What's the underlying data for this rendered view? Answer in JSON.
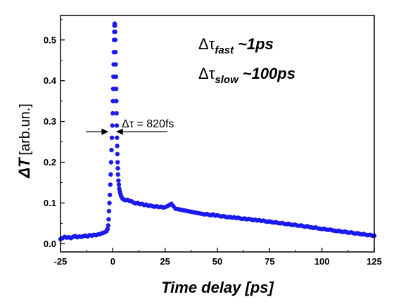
{
  "chart_data": {
    "type": "scatter",
    "xlabel": "Time delay [ps]",
    "ylabel_symbol": "ΔT",
    "ylabel_unit": "[arb.un.]",
    "xlim": [
      -25,
      125
    ],
    "ylim": [
      -0.02,
      0.56
    ],
    "xticks": [
      -25,
      0,
      25,
      50,
      75,
      100,
      125
    ],
    "yticks": [
      0.0,
      0.1,
      0.2,
      0.3,
      0.4,
      0.5
    ],
    "ytick_labels": [
      "0.0",
      "0.1",
      "0.2",
      "0.3",
      "0.4",
      "0.5"
    ],
    "grid": false,
    "marker_color": "#1a1aee",
    "annotations": {
      "fwhm": {
        "text": "Δτ = 820fs",
        "y": 0.275,
        "x_left": -2.0,
        "x_right": 1.5
      },
      "fast": {
        "delta": "Δτ",
        "sub": "fast",
        "value": "~1ps"
      },
      "slow": {
        "delta": "Δτ",
        "sub": "slow",
        "value": "~100ps"
      }
    },
    "points": [
      [
        -25,
        0.011
      ],
      [
        -24,
        0.014
      ],
      [
        -23,
        0.017
      ],
      [
        -22,
        0.015
      ],
      [
        -21,
        0.016
      ],
      [
        -20,
        0.014
      ],
      [
        -19,
        0.017
      ],
      [
        -18,
        0.019
      ],
      [
        -17,
        0.016
      ],
      [
        -16,
        0.018
      ],
      [
        -15,
        0.017
      ],
      [
        -14,
        0.019
      ],
      [
        -13,
        0.02
      ],
      [
        -12,
        0.018
      ],
      [
        -11,
        0.021
      ],
      [
        -10,
        0.02
      ],
      [
        -9,
        0.022
      ],
      [
        -8,
        0.021
      ],
      [
        -7,
        0.023
      ],
      [
        -6,
        0.024
      ],
      [
        -5,
        0.026
      ],
      [
        -4,
        0.028
      ],
      [
        -3,
        0.031
      ],
      [
        -2.5,
        0.036
      ],
      [
        -2.2,
        0.045
      ],
      [
        -2.0,
        0.06
      ],
      [
        -1.8,
        0.08
      ],
      [
        -1.6,
        0.1
      ],
      [
        -1.4,
        0.12
      ],
      [
        -1.2,
        0.145
      ],
      [
        -1.0,
        0.17
      ],
      [
        -0.8,
        0.2
      ],
      [
        -0.6,
        0.23
      ],
      [
        -0.4,
        0.26
      ],
      [
        -0.2,
        0.29
      ],
      [
        0.0,
        0.32
      ],
      [
        0.1,
        0.35
      ],
      [
        0.2,
        0.38
      ],
      [
        0.3,
        0.41
      ],
      [
        0.4,
        0.44
      ],
      [
        0.5,
        0.47
      ],
      [
        0.6,
        0.5
      ],
      [
        0.7,
        0.52
      ],
      [
        0.8,
        0.535
      ],
      [
        0.9,
        0.54
      ],
      [
        1.0,
        0.535
      ],
      [
        1.1,
        0.52
      ],
      [
        1.2,
        0.5
      ],
      [
        1.3,
        0.47
      ],
      [
        1.4,
        0.44
      ],
      [
        1.5,
        0.41
      ],
      [
        1.6,
        0.38
      ],
      [
        1.7,
        0.35
      ],
      [
        1.8,
        0.32
      ],
      [
        1.9,
        0.29
      ],
      [
        2.0,
        0.26
      ],
      [
        2.1,
        0.24
      ],
      [
        2.2,
        0.22
      ],
      [
        2.3,
        0.2
      ],
      [
        2.4,
        0.185
      ],
      [
        2.5,
        0.17
      ],
      [
        2.7,
        0.155
      ],
      [
        2.9,
        0.145
      ],
      [
        3.1,
        0.135
      ],
      [
        3.4,
        0.128
      ],
      [
        3.7,
        0.122
      ],
      [
        4,
        0.117
      ],
      [
        4.5,
        0.112
      ],
      [
        5,
        0.109
      ],
      [
        6,
        0.107
      ],
      [
        7,
        0.108
      ],
      [
        8,
        0.105
      ],
      [
        9,
        0.104
      ],
      [
        10,
        0.101
      ],
      [
        11,
        0.099
      ],
      [
        12,
        0.1
      ],
      [
        13,
        0.097
      ],
      [
        14,
        0.098
      ],
      [
        15,
        0.095
      ],
      [
        16,
        0.096
      ],
      [
        17,
        0.093
      ],
      [
        18,
        0.094
      ],
      [
        19,
        0.092
      ],
      [
        20,
        0.091
      ],
      [
        21,
        0.092
      ],
      [
        22,
        0.09
      ],
      [
        23,
        0.091
      ],
      [
        24,
        0.089
      ],
      [
        25,
        0.09
      ],
      [
        26,
        0.092
      ],
      [
        27,
        0.095
      ],
      [
        28,
        0.098
      ],
      [
        29,
        0.092
      ],
      [
        30,
        0.086
      ],
      [
        31,
        0.085
      ],
      [
        32,
        0.084
      ],
      [
        33,
        0.083
      ],
      [
        34,
        0.082
      ],
      [
        35,
        0.081
      ],
      [
        36,
        0.08
      ],
      [
        37,
        0.079
      ],
      [
        38,
        0.078
      ],
      [
        39,
        0.077
      ],
      [
        40,
        0.076
      ],
      [
        41,
        0.075
      ],
      [
        42,
        0.074
      ],
      [
        43,
        0.073
      ],
      [
        44,
        0.072
      ],
      [
        45,
        0.073
      ],
      [
        46,
        0.071
      ],
      [
        47,
        0.07
      ],
      [
        48,
        0.072
      ],
      [
        49,
        0.069
      ],
      [
        50,
        0.07
      ],
      [
        51,
        0.068
      ],
      [
        52,
        0.067
      ],
      [
        53,
        0.068
      ],
      [
        54,
        0.066
      ],
      [
        55,
        0.065
      ],
      [
        56,
        0.066
      ],
      [
        57,
        0.064
      ],
      [
        58,
        0.065
      ],
      [
        59,
        0.063
      ],
      [
        60,
        0.064
      ],
      [
        61,
        0.062
      ],
      [
        62,
        0.061
      ],
      [
        63,
        0.062
      ],
      [
        64,
        0.06
      ],
      [
        65,
        0.061
      ],
      [
        66,
        0.06
      ],
      [
        67,
        0.058
      ],
      [
        68,
        0.059
      ],
      [
        69,
        0.057
      ],
      [
        70,
        0.058
      ],
      [
        71,
        0.056
      ],
      [
        72,
        0.057
      ],
      [
        73,
        0.055
      ],
      [
        74,
        0.054
      ],
      [
        75,
        0.055
      ],
      [
        76,
        0.053
      ],
      [
        77,
        0.052
      ],
      [
        78,
        0.053
      ],
      [
        79,
        0.051
      ],
      [
        80,
        0.05
      ],
      [
        81,
        0.051
      ],
      [
        82,
        0.049
      ],
      [
        83,
        0.048
      ],
      [
        84,
        0.049
      ],
      [
        85,
        0.047
      ],
      [
        86,
        0.046
      ],
      [
        87,
        0.047
      ],
      [
        88,
        0.045
      ],
      [
        89,
        0.044
      ],
      [
        90,
        0.045
      ],
      [
        91,
        0.043
      ],
      [
        92,
        0.042
      ],
      [
        93,
        0.043
      ],
      [
        94,
        0.041
      ],
      [
        95,
        0.04
      ],
      [
        96,
        0.039
      ],
      [
        97,
        0.04
      ],
      [
        98,
        0.038
      ],
      [
        99,
        0.037
      ],
      [
        100,
        0.036
      ],
      [
        101,
        0.037
      ],
      [
        102,
        0.035
      ],
      [
        103,
        0.034
      ],
      [
        104,
        0.035
      ],
      [
        105,
        0.033
      ],
      [
        106,
        0.032
      ],
      [
        107,
        0.031
      ],
      [
        108,
        0.032
      ],
      [
        109,
        0.03
      ],
      [
        110,
        0.029
      ],
      [
        111,
        0.03
      ],
      [
        112,
        0.028
      ],
      [
        113,
        0.027
      ],
      [
        114,
        0.028
      ],
      [
        115,
        0.026
      ],
      [
        116,
        0.025
      ],
      [
        117,
        0.026
      ],
      [
        118,
        0.024
      ],
      [
        119,
        0.023
      ],
      [
        120,
        0.024
      ],
      [
        121,
        0.022
      ],
      [
        122,
        0.021
      ],
      [
        123,
        0.022
      ],
      [
        124,
        0.02
      ],
      [
        125,
        0.02
      ]
    ]
  }
}
